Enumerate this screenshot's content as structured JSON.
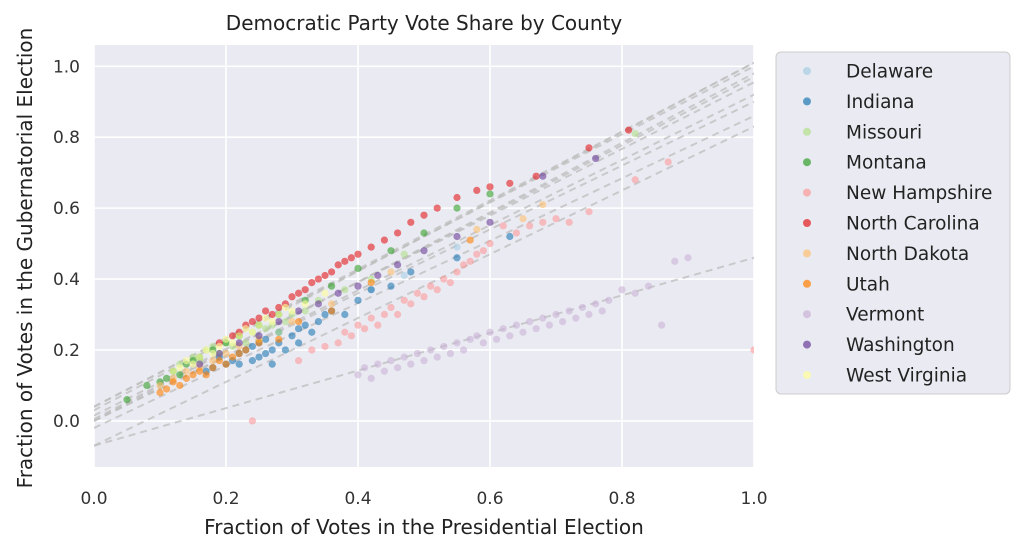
{
  "chart_data": {
    "type": "scatter",
    "title": "Democratic Party Vote Share by County",
    "xlabel": "Fraction of Votes in the Presidential Election",
    "ylabel": "Fraction of Votes in the Gubernatorial Election",
    "xlim": [
      0.0,
      1.0
    ],
    "ylim": [
      -0.13,
      1.06
    ],
    "xticks": [
      0.0,
      0.2,
      0.4,
      0.6,
      0.8,
      1.0
    ],
    "xtick_labels": [
      "0.0",
      "0.2",
      "0.4",
      "0.6",
      "0.8",
      "1.0"
    ],
    "yticks": [
      0.0,
      0.2,
      0.4,
      0.6,
      0.8,
      1.0
    ],
    "ytick_labels": [
      "0.0",
      "0.2",
      "0.4",
      "0.6",
      "0.8",
      "1.0"
    ],
    "grid": true,
    "legend_position": "outside-right",
    "series": [
      {
        "name": "Delaware",
        "color": "#a6cee3",
        "points": [
          [
            0.42,
            0.37
          ],
          [
            0.47,
            0.41
          ],
          [
            0.55,
            0.49
          ]
        ],
        "fit": [
          0.005,
          0.965
        ]
      },
      {
        "name": "Indiana",
        "color": "#1f78b4",
        "points": [
          [
            0.17,
            0.14
          ],
          [
            0.18,
            0.15
          ],
          [
            0.19,
            0.18
          ],
          [
            0.2,
            0.16
          ],
          [
            0.21,
            0.17
          ],
          [
            0.22,
            0.19
          ],
          [
            0.22,
            0.16
          ],
          [
            0.23,
            0.2
          ],
          [
            0.24,
            0.17
          ],
          [
            0.24,
            0.21
          ],
          [
            0.25,
            0.18
          ],
          [
            0.25,
            0.22
          ],
          [
            0.26,
            0.19
          ],
          [
            0.26,
            0.23
          ],
          [
            0.27,
            0.2
          ],
          [
            0.27,
            0.16
          ],
          [
            0.28,
            0.22
          ],
          [
            0.28,
            0.25
          ],
          [
            0.29,
            0.2
          ],
          [
            0.3,
            0.24
          ],
          [
            0.31,
            0.22
          ],
          [
            0.31,
            0.26
          ],
          [
            0.32,
            0.27
          ],
          [
            0.33,
            0.25
          ],
          [
            0.34,
            0.28
          ],
          [
            0.35,
            0.3
          ],
          [
            0.36,
            0.31
          ],
          [
            0.38,
            0.3
          ],
          [
            0.4,
            0.34
          ],
          [
            0.42,
            0.37
          ],
          [
            0.45,
            0.38
          ],
          [
            0.48,
            0.42
          ],
          [
            0.55,
            0.46
          ],
          [
            0.63,
            0.52
          ]
        ],
        "fit": [
          -0.02,
          0.88
        ]
      },
      {
        "name": "Missouri",
        "color": "#b2df8a",
        "points": [
          [
            0.13,
            0.16
          ],
          [
            0.15,
            0.18
          ],
          [
            0.16,
            0.17
          ],
          [
            0.17,
            0.2
          ],
          [
            0.18,
            0.21
          ],
          [
            0.19,
            0.19
          ],
          [
            0.2,
            0.22
          ],
          [
            0.21,
            0.21
          ],
          [
            0.22,
            0.24
          ],
          [
            0.23,
            0.22
          ],
          [
            0.24,
            0.25
          ],
          [
            0.25,
            0.23
          ],
          [
            0.26,
            0.26
          ],
          [
            0.27,
            0.27
          ],
          [
            0.28,
            0.25
          ],
          [
            0.29,
            0.28
          ],
          [
            0.3,
            0.3
          ],
          [
            0.32,
            0.31
          ],
          [
            0.34,
            0.34
          ],
          [
            0.38,
            0.37
          ],
          [
            0.42,
            0.4
          ],
          [
            0.47,
            0.47
          ],
          [
            0.82,
            0.81
          ]
        ],
        "fit": [
          0.0,
          0.98
        ]
      },
      {
        "name": "Montana",
        "color": "#33a02c",
        "points": [
          [
            0.05,
            0.06
          ],
          [
            0.08,
            0.1
          ],
          [
            0.1,
            0.11
          ],
          [
            0.11,
            0.12
          ],
          [
            0.12,
            0.14
          ],
          [
            0.13,
            0.13
          ],
          [
            0.14,
            0.16
          ],
          [
            0.15,
            0.17
          ],
          [
            0.16,
            0.18
          ],
          [
            0.18,
            0.2
          ],
          [
            0.2,
            0.22
          ],
          [
            0.22,
            0.24
          ],
          [
            0.25,
            0.27
          ],
          [
            0.28,
            0.3
          ],
          [
            0.32,
            0.34
          ],
          [
            0.36,
            0.38
          ],
          [
            0.4,
            0.43
          ],
          [
            0.45,
            0.48
          ],
          [
            0.5,
            0.53
          ],
          [
            0.55,
            0.6
          ],
          [
            0.6,
            0.64
          ]
        ],
        "fit": [
          0.04,
          0.96
        ]
      },
      {
        "name": "New Hampshire",
        "color": "#fb9a99",
        "points": [
          [
            0.24,
            0.0
          ],
          [
            0.31,
            0.17
          ],
          [
            0.33,
            0.2
          ],
          [
            0.35,
            0.21
          ],
          [
            0.37,
            0.22
          ],
          [
            0.38,
            0.25
          ],
          [
            0.39,
            0.24
          ],
          [
            0.4,
            0.27
          ],
          [
            0.41,
            0.26
          ],
          [
            0.42,
            0.29
          ],
          [
            0.43,
            0.27
          ],
          [
            0.44,
            0.3
          ],
          [
            0.45,
            0.32
          ],
          [
            0.46,
            0.3
          ],
          [
            0.47,
            0.34
          ],
          [
            0.48,
            0.33
          ],
          [
            0.49,
            0.36
          ],
          [
            0.5,
            0.35
          ],
          [
            0.51,
            0.38
          ],
          [
            0.52,
            0.37
          ],
          [
            0.53,
            0.4
          ],
          [
            0.54,
            0.39
          ],
          [
            0.55,
            0.42
          ],
          [
            0.56,
            0.44
          ],
          [
            0.57,
            0.45
          ],
          [
            0.58,
            0.47
          ],
          [
            0.59,
            0.48
          ],
          [
            0.6,
            0.5
          ],
          [
            0.62,
            0.55
          ],
          [
            0.64,
            0.53
          ],
          [
            0.66,
            0.55
          ],
          [
            0.68,
            0.56
          ],
          [
            0.7,
            0.57
          ],
          [
            0.72,
            0.56
          ],
          [
            0.75,
            0.59
          ],
          [
            0.82,
            0.68
          ],
          [
            0.87,
            0.73
          ],
          [
            1.0,
            0.2
          ]
        ],
        "fit": [
          -0.07,
          0.9
        ]
      },
      {
        "name": "North Carolina",
        "color": "#e31a1c",
        "points": [
          [
            0.19,
            0.22
          ],
          [
            0.21,
            0.24
          ],
          [
            0.22,
            0.25
          ],
          [
            0.23,
            0.27
          ],
          [
            0.24,
            0.28
          ],
          [
            0.25,
            0.29
          ],
          [
            0.26,
            0.31
          ],
          [
            0.27,
            0.3
          ],
          [
            0.28,
            0.32
          ],
          [
            0.29,
            0.33
          ],
          [
            0.3,
            0.35
          ],
          [
            0.31,
            0.36
          ],
          [
            0.32,
            0.37
          ],
          [
            0.33,
            0.39
          ],
          [
            0.34,
            0.4
          ],
          [
            0.35,
            0.41
          ],
          [
            0.36,
            0.42
          ],
          [
            0.37,
            0.44
          ],
          [
            0.38,
            0.45
          ],
          [
            0.39,
            0.46
          ],
          [
            0.4,
            0.47
          ],
          [
            0.42,
            0.49
          ],
          [
            0.44,
            0.51
          ],
          [
            0.46,
            0.53
          ],
          [
            0.48,
            0.56
          ],
          [
            0.5,
            0.58
          ],
          [
            0.52,
            0.6
          ],
          [
            0.55,
            0.63
          ],
          [
            0.58,
            0.65
          ],
          [
            0.6,
            0.66
          ],
          [
            0.63,
            0.67
          ],
          [
            0.67,
            0.69
          ],
          [
            0.75,
            0.77
          ],
          [
            0.81,
            0.82
          ]
        ],
        "fit": [
          0.04,
          0.97
        ]
      },
      {
        "name": "North Dakota",
        "color": "#fdbf6f",
        "points": [
          [
            0.1,
            0.1
          ],
          [
            0.12,
            0.12
          ],
          [
            0.14,
            0.14
          ],
          [
            0.16,
            0.15
          ],
          [
            0.18,
            0.17
          ],
          [
            0.2,
            0.19
          ],
          [
            0.22,
            0.21
          ],
          [
            0.25,
            0.23
          ],
          [
            0.3,
            0.28
          ],
          [
            0.36,
            0.33
          ],
          [
            0.45,
            0.42
          ],
          [
            0.58,
            0.54
          ],
          [
            0.65,
            0.57
          ],
          [
            0.68,
            0.61
          ]
        ],
        "fit": [
          0.015,
          0.94
        ]
      },
      {
        "name": "Utah",
        "color": "#ff7f00",
        "points": [
          [
            0.1,
            0.08
          ],
          [
            0.11,
            0.09
          ],
          [
            0.12,
            0.11
          ],
          [
            0.13,
            0.1
          ],
          [
            0.14,
            0.12
          ],
          [
            0.15,
            0.13
          ],
          [
            0.16,
            0.14
          ],
          [
            0.17,
            0.13
          ],
          [
            0.18,
            0.15
          ],
          [
            0.19,
            0.17
          ],
          [
            0.2,
            0.16
          ],
          [
            0.21,
            0.18
          ],
          [
            0.22,
            0.19
          ],
          [
            0.23,
            0.2
          ],
          [
            0.25,
            0.22
          ],
          [
            0.28,
            0.23
          ],
          [
            0.31,
            0.28
          ],
          [
            0.36,
            0.31
          ],
          [
            0.42,
            0.39
          ],
          [
            0.57,
            0.51
          ]
        ],
        "fit": [
          0.0,
          0.9
        ]
      },
      {
        "name": "Vermont",
        "color": "#cab2d6",
        "points": [
          [
            0.4,
            0.13
          ],
          [
            0.41,
            0.15
          ],
          [
            0.42,
            0.12
          ],
          [
            0.43,
            0.16
          ],
          [
            0.44,
            0.14
          ],
          [
            0.45,
            0.17
          ],
          [
            0.46,
            0.15
          ],
          [
            0.47,
            0.18
          ],
          [
            0.48,
            0.16
          ],
          [
            0.49,
            0.19
          ],
          [
            0.5,
            0.17
          ],
          [
            0.51,
            0.2
          ],
          [
            0.52,
            0.18
          ],
          [
            0.53,
            0.21
          ],
          [
            0.54,
            0.19
          ],
          [
            0.55,
            0.22
          ],
          [
            0.56,
            0.2
          ],
          [
            0.57,
            0.23
          ],
          [
            0.58,
            0.24
          ],
          [
            0.59,
            0.22
          ],
          [
            0.6,
            0.25
          ],
          [
            0.61,
            0.23
          ],
          [
            0.62,
            0.26
          ],
          [
            0.63,
            0.24
          ],
          [
            0.64,
            0.27
          ],
          [
            0.65,
            0.25
          ],
          [
            0.66,
            0.28
          ],
          [
            0.67,
            0.26
          ],
          [
            0.68,
            0.29
          ],
          [
            0.69,
            0.27
          ],
          [
            0.7,
            0.3
          ],
          [
            0.71,
            0.28
          ],
          [
            0.72,
            0.31
          ],
          [
            0.73,
            0.29
          ],
          [
            0.74,
            0.32
          ],
          [
            0.75,
            0.3
          ],
          [
            0.76,
            0.33
          ],
          [
            0.77,
            0.31
          ],
          [
            0.78,
            0.34
          ],
          [
            0.8,
            0.37
          ],
          [
            0.82,
            0.36
          ],
          [
            0.84,
            0.38
          ],
          [
            0.86,
            0.27
          ],
          [
            0.88,
            0.45
          ],
          [
            0.9,
            0.46
          ]
        ],
        "fit": [
          -0.07,
          0.53
        ]
      },
      {
        "name": "Washington",
        "color": "#6a3d9a",
        "points": [
          [
            0.16,
            0.16
          ],
          [
            0.19,
            0.19
          ],
          [
            0.22,
            0.22
          ],
          [
            0.25,
            0.24
          ],
          [
            0.28,
            0.28
          ],
          [
            0.31,
            0.31
          ],
          [
            0.34,
            0.33
          ],
          [
            0.37,
            0.36
          ],
          [
            0.4,
            0.38
          ],
          [
            0.43,
            0.41
          ],
          [
            0.46,
            0.44
          ],
          [
            0.5,
            0.48
          ],
          [
            0.55,
            0.52
          ],
          [
            0.6,
            0.56
          ],
          [
            0.68,
            0.69
          ],
          [
            0.76,
            0.74
          ]
        ],
        "fit": [
          0.0,
          0.92
        ]
      },
      {
        "name": "West Virginia",
        "color": "#ffff99",
        "points": [
          [
            0.12,
            0.14
          ],
          [
            0.13,
            0.15
          ],
          [
            0.14,
            0.17
          ],
          [
            0.15,
            0.16
          ],
          [
            0.16,
            0.18
          ],
          [
            0.17,
            0.2
          ],
          [
            0.18,
            0.19
          ],
          [
            0.19,
            0.21
          ],
          [
            0.2,
            0.23
          ],
          [
            0.21,
            0.22
          ],
          [
            0.22,
            0.24
          ],
          [
            0.23,
            0.26
          ],
          [
            0.24,
            0.25
          ],
          [
            0.25,
            0.27
          ],
          [
            0.26,
            0.29
          ],
          [
            0.27,
            0.28
          ],
          [
            0.28,
            0.3
          ],
          [
            0.29,
            0.32
          ],
          [
            0.3,
            0.31
          ],
          [
            0.32,
            0.33
          ],
          [
            0.35,
            0.36
          ]
        ],
        "fit": [
          0.03,
          0.98
        ]
      }
    ]
  }
}
